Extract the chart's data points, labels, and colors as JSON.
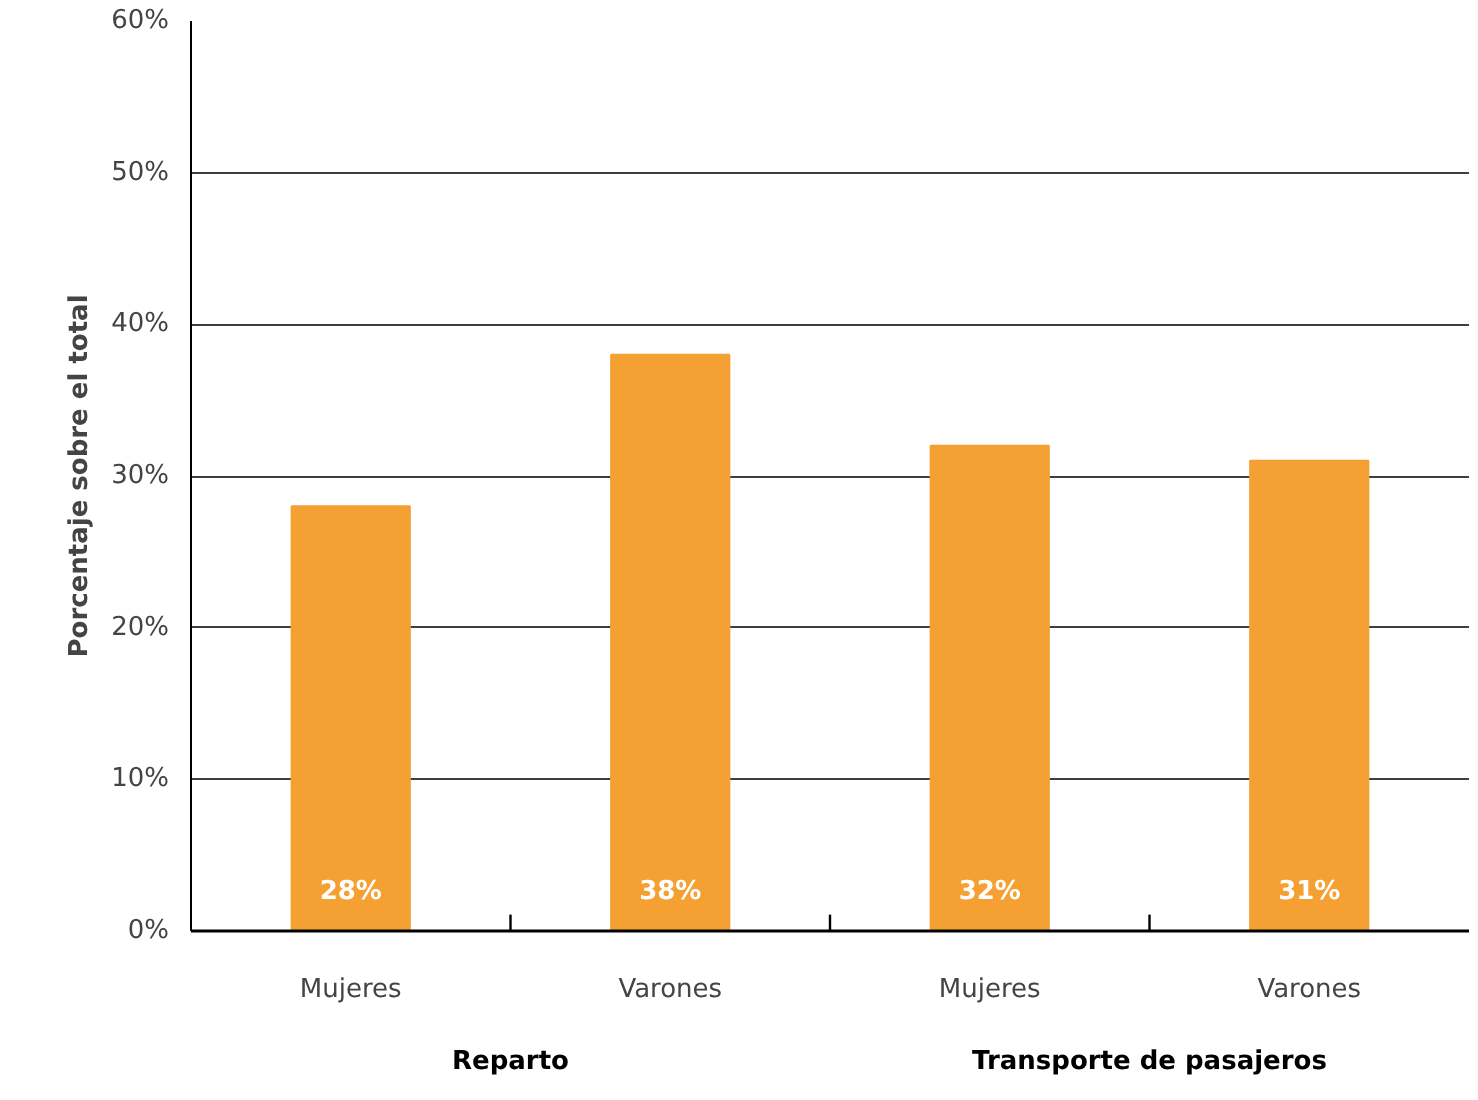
{
  "chart_data": {
    "type": "bar",
    "ylabel": "Porcentaje sobre el total",
    "categories": [
      "Mujeres",
      "Varones",
      "Mujeres",
      "Varones"
    ],
    "values": [
      28,
      38,
      32,
      31
    ],
    "color": "#f4a032",
    "value_labels": [
      "28%",
      "38%",
      "32%",
      "31%"
    ],
    "ylim": [
      0,
      60
    ],
    "yticks": [
      {
        "value": 0,
        "label": "0%"
      },
      {
        "value": 10,
        "label": "10%"
      },
      {
        "value": 20,
        "label": "20%"
      },
      {
        "value": 30,
        "label": "30%"
      },
      {
        "value": 40,
        "label": "40%"
      },
      {
        "value": 50,
        "label": "50%"
      },
      {
        "value": 60,
        "label": "60%"
      }
    ],
    "grid": "y",
    "annotations": [
      "Reparto",
      "Transporte de pasajeros"
    ]
  }
}
